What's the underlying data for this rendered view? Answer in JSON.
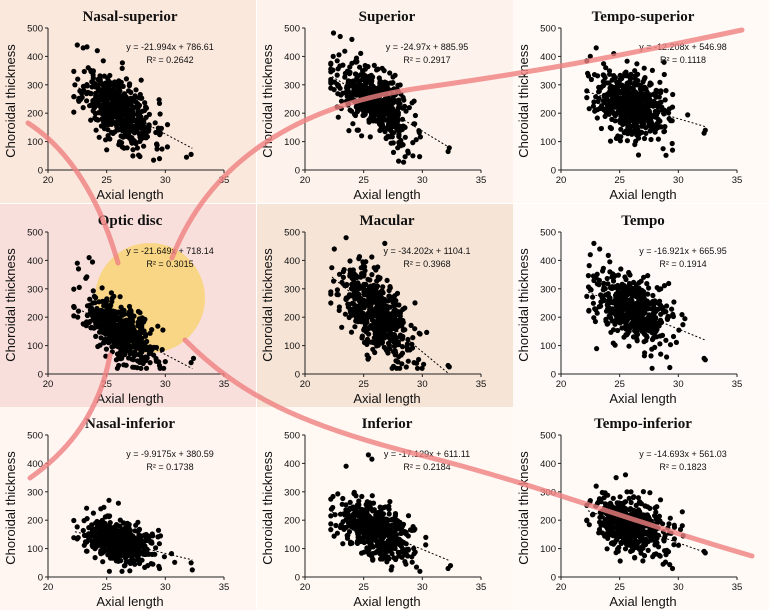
{
  "figure": {
    "background_colors": [
      "#fbe8dd",
      "#fdf3ec",
      "#fffaf6",
      "#f8dfdb",
      "#f6e4d6",
      "#fffaf7",
      "#fff6f2",
      "#fff8f3",
      "#fffaf6"
    ],
    "marker_color": "#000000",
    "trend_color": "#000000",
    "overlay": {
      "curve_color": "#ef7f7f",
      "highlight_fill": "#fff27a",
      "highlight_opacity": 0.75,
      "shadow_color": "#3b3a00"
    }
  },
  "chart_data": [
    {
      "type": "scatter",
      "title": "Nasal-superior",
      "xlabel": "Axial length",
      "ylabel": "Choroidal thickness",
      "xlim": [
        20,
        35
      ],
      "ylim": [
        0,
        500
      ],
      "xticks": [
        20,
        25,
        30,
        35
      ],
      "yticks": [
        0,
        100,
        200,
        300,
        400,
        500
      ],
      "equation": "y = -21.994x + 786.61",
      "r2": "R² = 0.2642",
      "slope": -21.994,
      "intercept": 786.61,
      "x_center": 26,
      "x_spread": 1.5,
      "y_noise": 55,
      "trend_x": [
        22.3,
        32.3
      ],
      "outliers": [
        [
          22.5,
          440
        ],
        [
          23,
          430
        ],
        [
          24.2,
          420
        ],
        [
          31.8,
          45
        ],
        [
          32.2,
          55
        ],
        [
          29.5,
          40
        ],
        [
          29,
          35
        ]
      ],
      "n": 520,
      "seed": 11
    },
    {
      "type": "scatter",
      "title": "Superior",
      "xlabel": "Axial length",
      "ylabel": "Choroidal thickness",
      "xlim": [
        20,
        35
      ],
      "ylim": [
        0,
        500
      ],
      "xticks": [
        20,
        25,
        30,
        35
      ],
      "yticks": [
        0,
        100,
        200,
        300,
        400,
        500
      ],
      "equation": "y = -24.97x + 885.95",
      "r2": "R² = 0.2917",
      "slope": -24.97,
      "intercept": 885.95,
      "x_center": 26,
      "x_spread": 1.5,
      "y_noise": 55,
      "trend_x": [
        22.3,
        32.3
      ],
      "outliers": [
        [
          23,
          470
        ],
        [
          22.4,
          400
        ],
        [
          24,
          460
        ],
        [
          32.2,
          65
        ],
        [
          32.3,
          78
        ],
        [
          29.2,
          50
        ],
        [
          28.8,
          60
        ]
      ],
      "n": 520,
      "seed": 22
    },
    {
      "type": "scatter",
      "title": "Tempo-superior",
      "xlabel": "Axial length",
      "ylabel": "Choroidal thickness",
      "xlim": [
        20,
        35
      ],
      "ylim": [
        0,
        500
      ],
      "xticks": [
        20,
        25,
        30,
        35
      ],
      "yticks": [
        0,
        100,
        200,
        300,
        400,
        500
      ],
      "equation": "y = -12.208x + 546.98",
      "r2": "R² = 0.1118",
      "slope": -12.208,
      "intercept": 546.98,
      "x_center": 26,
      "x_spread": 1.5,
      "y_noise": 55,
      "trend_x": [
        22.3,
        32.3
      ],
      "outliers": [
        [
          23,
          430
        ],
        [
          22.5,
          400
        ],
        [
          24.5,
          410
        ],
        [
          32.2,
          130
        ],
        [
          32.3,
          140
        ],
        [
          29.5,
          70
        ],
        [
          28.7,
          75
        ]
      ],
      "n": 520,
      "seed": 33
    },
    {
      "type": "scatter",
      "title": "Optic disc",
      "xlabel": "Axial length",
      "ylabel": "Choroidal thickness",
      "xlim": [
        20,
        35
      ],
      "ylim": [
        0,
        500
      ],
      "xticks": [
        20,
        25,
        30,
        35
      ],
      "yticks": [
        0,
        100,
        200,
        300,
        400,
        500
      ],
      "equation": "y = -21.649x + 718.14",
      "r2": "R² = 0.3015",
      "slope": -21.649,
      "intercept": 718.14,
      "x_center": 26,
      "x_spread": 1.5,
      "y_noise": 50,
      "trend_x": [
        22.3,
        32.3
      ],
      "outliers": [
        [
          22.5,
          390
        ],
        [
          23.5,
          410
        ],
        [
          22.6,
          370
        ],
        [
          32.2,
          40
        ],
        [
          32.4,
          55
        ],
        [
          29.5,
          30
        ],
        [
          28.7,
          40
        ]
      ],
      "n": 520,
      "seed": 44
    },
    {
      "type": "scatter",
      "title": "Macular",
      "xlabel": "Axial length",
      "ylabel": "Choroidal thickness",
      "xlim": [
        20,
        35
      ],
      "ylim": [
        0,
        500
      ],
      "xticks": [
        20,
        25,
        30,
        35
      ],
      "yticks": [
        0,
        100,
        200,
        300,
        400,
        500
      ],
      "equation": "y = -34.202x + 1104.1",
      "r2": "R² = 0.3968",
      "slope": -34.202,
      "intercept": 1104.1,
      "x_center": 26,
      "x_spread": 1.5,
      "y_noise": 65,
      "trend_x": [
        22.3,
        32.3
      ],
      "outliers": [
        [
          23.5,
          480
        ],
        [
          22.5,
          440
        ],
        [
          26.8,
          460
        ],
        [
          32.2,
          30
        ],
        [
          32.3,
          25
        ],
        [
          29.3,
          40
        ],
        [
          28.8,
          45
        ]
      ],
      "n": 520,
      "seed": 55
    },
    {
      "type": "scatter",
      "title": "Tempo",
      "xlabel": "Axial length",
      "ylabel": "Choroidal thickness",
      "xlim": [
        20,
        35
      ],
      "ylim": [
        0,
        500
      ],
      "xticks": [
        20,
        25,
        30,
        35
      ],
      "yticks": [
        0,
        100,
        200,
        300,
        400,
        500
      ],
      "equation": "y = -16.921x + 665.95",
      "r2": "R² = 0.1914",
      "slope": -16.921,
      "intercept": 665.95,
      "x_center": 26,
      "x_spread": 1.5,
      "y_noise": 55,
      "trend_x": [
        22.3,
        32.3
      ],
      "outliers": [
        [
          22.8,
          460
        ],
        [
          23.3,
          440
        ],
        [
          22.5,
          420
        ],
        [
          32.2,
          55
        ],
        [
          32.3,
          50
        ],
        [
          29,
          60
        ],
        [
          28.5,
          70
        ]
      ],
      "n": 520,
      "seed": 66
    },
    {
      "type": "scatter",
      "title": "Nasal-inferior",
      "xlabel": "Axial length",
      "ylabel": "Choroidal thickness",
      "xlim": [
        20,
        35
      ],
      "ylim": [
        0,
        500
      ],
      "xticks": [
        20,
        25,
        30,
        35
      ],
      "yticks": [
        0,
        100,
        200,
        300,
        400,
        500
      ],
      "equation": "y = -9.9175x + 380.59",
      "r2": "R² = 0.1738",
      "slope": -9.9175,
      "intercept": 380.59,
      "x_center": 26,
      "x_spread": 1.5,
      "y_noise": 35,
      "trend_x": [
        22.3,
        32.3
      ],
      "outliers": [
        [
          25.2,
          270
        ],
        [
          26,
          260
        ],
        [
          24.5,
          240
        ],
        [
          32.2,
          50
        ],
        [
          32.3,
          25
        ],
        [
          29.5,
          30
        ],
        [
          28.5,
          40
        ]
      ],
      "n": 520,
      "seed": 77
    },
    {
      "type": "scatter",
      "title": "Inferior",
      "xlabel": "Axial length",
      "ylabel": "Choroidal thickness",
      "xlim": [
        20,
        35
      ],
      "ylim": [
        0,
        500
      ],
      "xticks": [
        20,
        25,
        30,
        35
      ],
      "yticks": [
        0,
        100,
        200,
        300,
        400,
        500
      ],
      "equation": "y = -17.129x + 611.11",
      "r2": "R² = 0.2184",
      "slope": -17.129,
      "intercept": 611.11,
      "x_center": 26,
      "x_spread": 1.5,
      "y_noise": 45,
      "trend_x": [
        22.3,
        32.3
      ],
      "outliers": [
        [
          25.4,
          430
        ],
        [
          25.7,
          415
        ],
        [
          23.5,
          390
        ],
        [
          32.2,
          30
        ],
        [
          32.4,
          40
        ],
        [
          29.5,
          35
        ],
        [
          28.6,
          45
        ]
      ],
      "n": 520,
      "seed": 88
    },
    {
      "type": "scatter",
      "title": "Tempo-inferior",
      "xlabel": "Axial length",
      "ylabel": "Choroidal thickness",
      "xlim": [
        20,
        35
      ],
      "ylim": [
        0,
        500
      ],
      "xticks": [
        20,
        25,
        30,
        35
      ],
      "yticks": [
        0,
        100,
        200,
        300,
        400,
        500
      ],
      "equation": "y = -14.693x + 561.03",
      "r2": "R² = 0.1823",
      "slope": -14.693,
      "intercept": 561.03,
      "x_center": 26,
      "x_spread": 1.5,
      "y_noise": 45,
      "trend_x": [
        22.3,
        32.3
      ],
      "outliers": [
        [
          25.5,
          360
        ],
        [
          24.7,
          350
        ],
        [
          23,
          320
        ],
        [
          32.2,
          90
        ],
        [
          32.3,
          85
        ],
        [
          29.5,
          30
        ],
        [
          28.7,
          45
        ]
      ],
      "n": 520,
      "seed": 99
    }
  ]
}
